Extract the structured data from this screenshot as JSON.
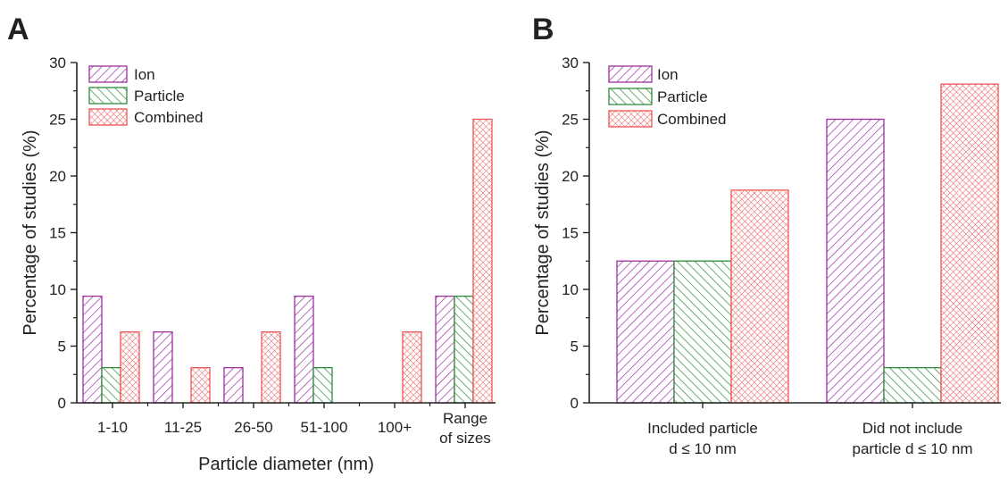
{
  "colors": {
    "ion": "#9b2fa0",
    "particle": "#2e8b3a",
    "combined": "#ee5555",
    "axis": "#222222"
  },
  "chart_data": [
    {
      "panel_label": "A",
      "type": "bar",
      "pattern_style": "hatched",
      "categories": [
        [
          "1-10"
        ],
        [
          "11-25"
        ],
        [
          "26-50"
        ],
        [
          "51-100"
        ],
        [
          "100+"
        ],
        [
          "Range",
          "of sizes"
        ]
      ],
      "series": [
        {
          "name": "Ion",
          "key": "ion",
          "values": [
            9.4,
            6.25,
            3.1,
            9.4,
            0,
            9.4
          ]
        },
        {
          "name": "Particle",
          "key": "particle",
          "values": [
            3.1,
            0,
            0,
            3.1,
            0,
            9.4
          ]
        },
        {
          "name": "Combined",
          "key": "combined",
          "values": [
            6.25,
            3.1,
            6.25,
            0,
            6.25,
            25
          ]
        }
      ],
      "xlabel": "Particle diameter (nm)",
      "ylabel": "Percentage of studies (%)",
      "ylim": [
        0,
        30
      ],
      "yticks": [
        0,
        5,
        10,
        15,
        20,
        25,
        30
      ],
      "grid": false,
      "legend_position": "top-left"
    },
    {
      "panel_label": "B",
      "type": "bar",
      "pattern_style": "hatched",
      "categories": [
        [
          "Included particle",
          "d ≤ 10 nm"
        ],
        [
          "Did not include",
          "particle d ≤ 10 nm"
        ]
      ],
      "series": [
        {
          "name": "Ion",
          "key": "ion",
          "values": [
            12.5,
            25
          ]
        },
        {
          "name": "Particle",
          "key": "particle",
          "values": [
            12.5,
            3.1
          ]
        },
        {
          "name": "Combined",
          "key": "combined",
          "values": [
            18.75,
            28.1
          ]
        }
      ],
      "xlabel": "",
      "ylabel": "Percentage of studies (%)",
      "ylim": [
        0,
        30
      ],
      "yticks": [
        0,
        5,
        10,
        15,
        20,
        25,
        30
      ],
      "grid": false,
      "legend_position": "top-left"
    }
  ]
}
